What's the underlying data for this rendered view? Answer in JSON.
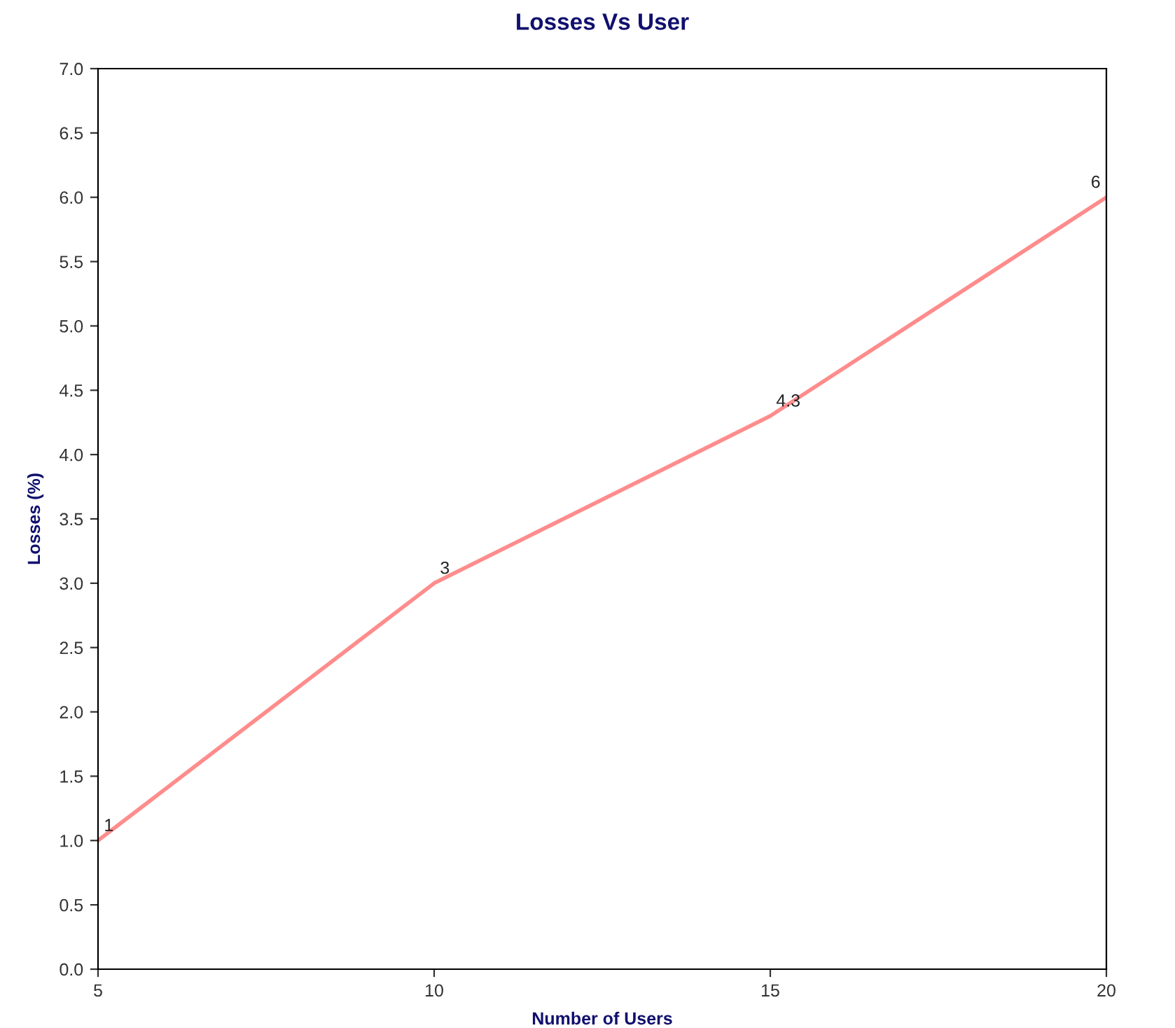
{
  "chart_data": {
    "type": "line",
    "title": "Losses Vs User",
    "xlabel": "Number of Users",
    "ylabel": "Losses (%)",
    "x": [
      5,
      10,
      15,
      20
    ],
    "series": [
      {
        "color": "#ff8c8c",
        "values": [
          1,
          3,
          4.3,
          6
        ]
      }
    ],
    "xlim": [
      5,
      20
    ],
    "xticks": [
      5,
      10,
      15,
      20
    ],
    "ylim": [
      0.0,
      7.0
    ],
    "yticks": [
      {
        "value": 0,
        "label": "0.0"
      },
      0.5,
      {
        "value": 1,
        "label": "1.0"
      },
      1.5,
      {
        "value": 2,
        "label": "2.0"
      },
      2.5,
      {
        "value": 3,
        "label": "3.0"
      },
      3.5,
      {
        "value": 4,
        "label": "4.0"
      },
      4.5,
      {
        "value": 5,
        "label": "5.0"
      },
      5.5,
      {
        "value": 6,
        "label": "6.0"
      },
      6.5,
      {
        "value": 7,
        "label": "7.0"
      }
    ],
    "data_labels": true,
    "grid": false,
    "marker": "none",
    "line_style": "solid"
  }
}
